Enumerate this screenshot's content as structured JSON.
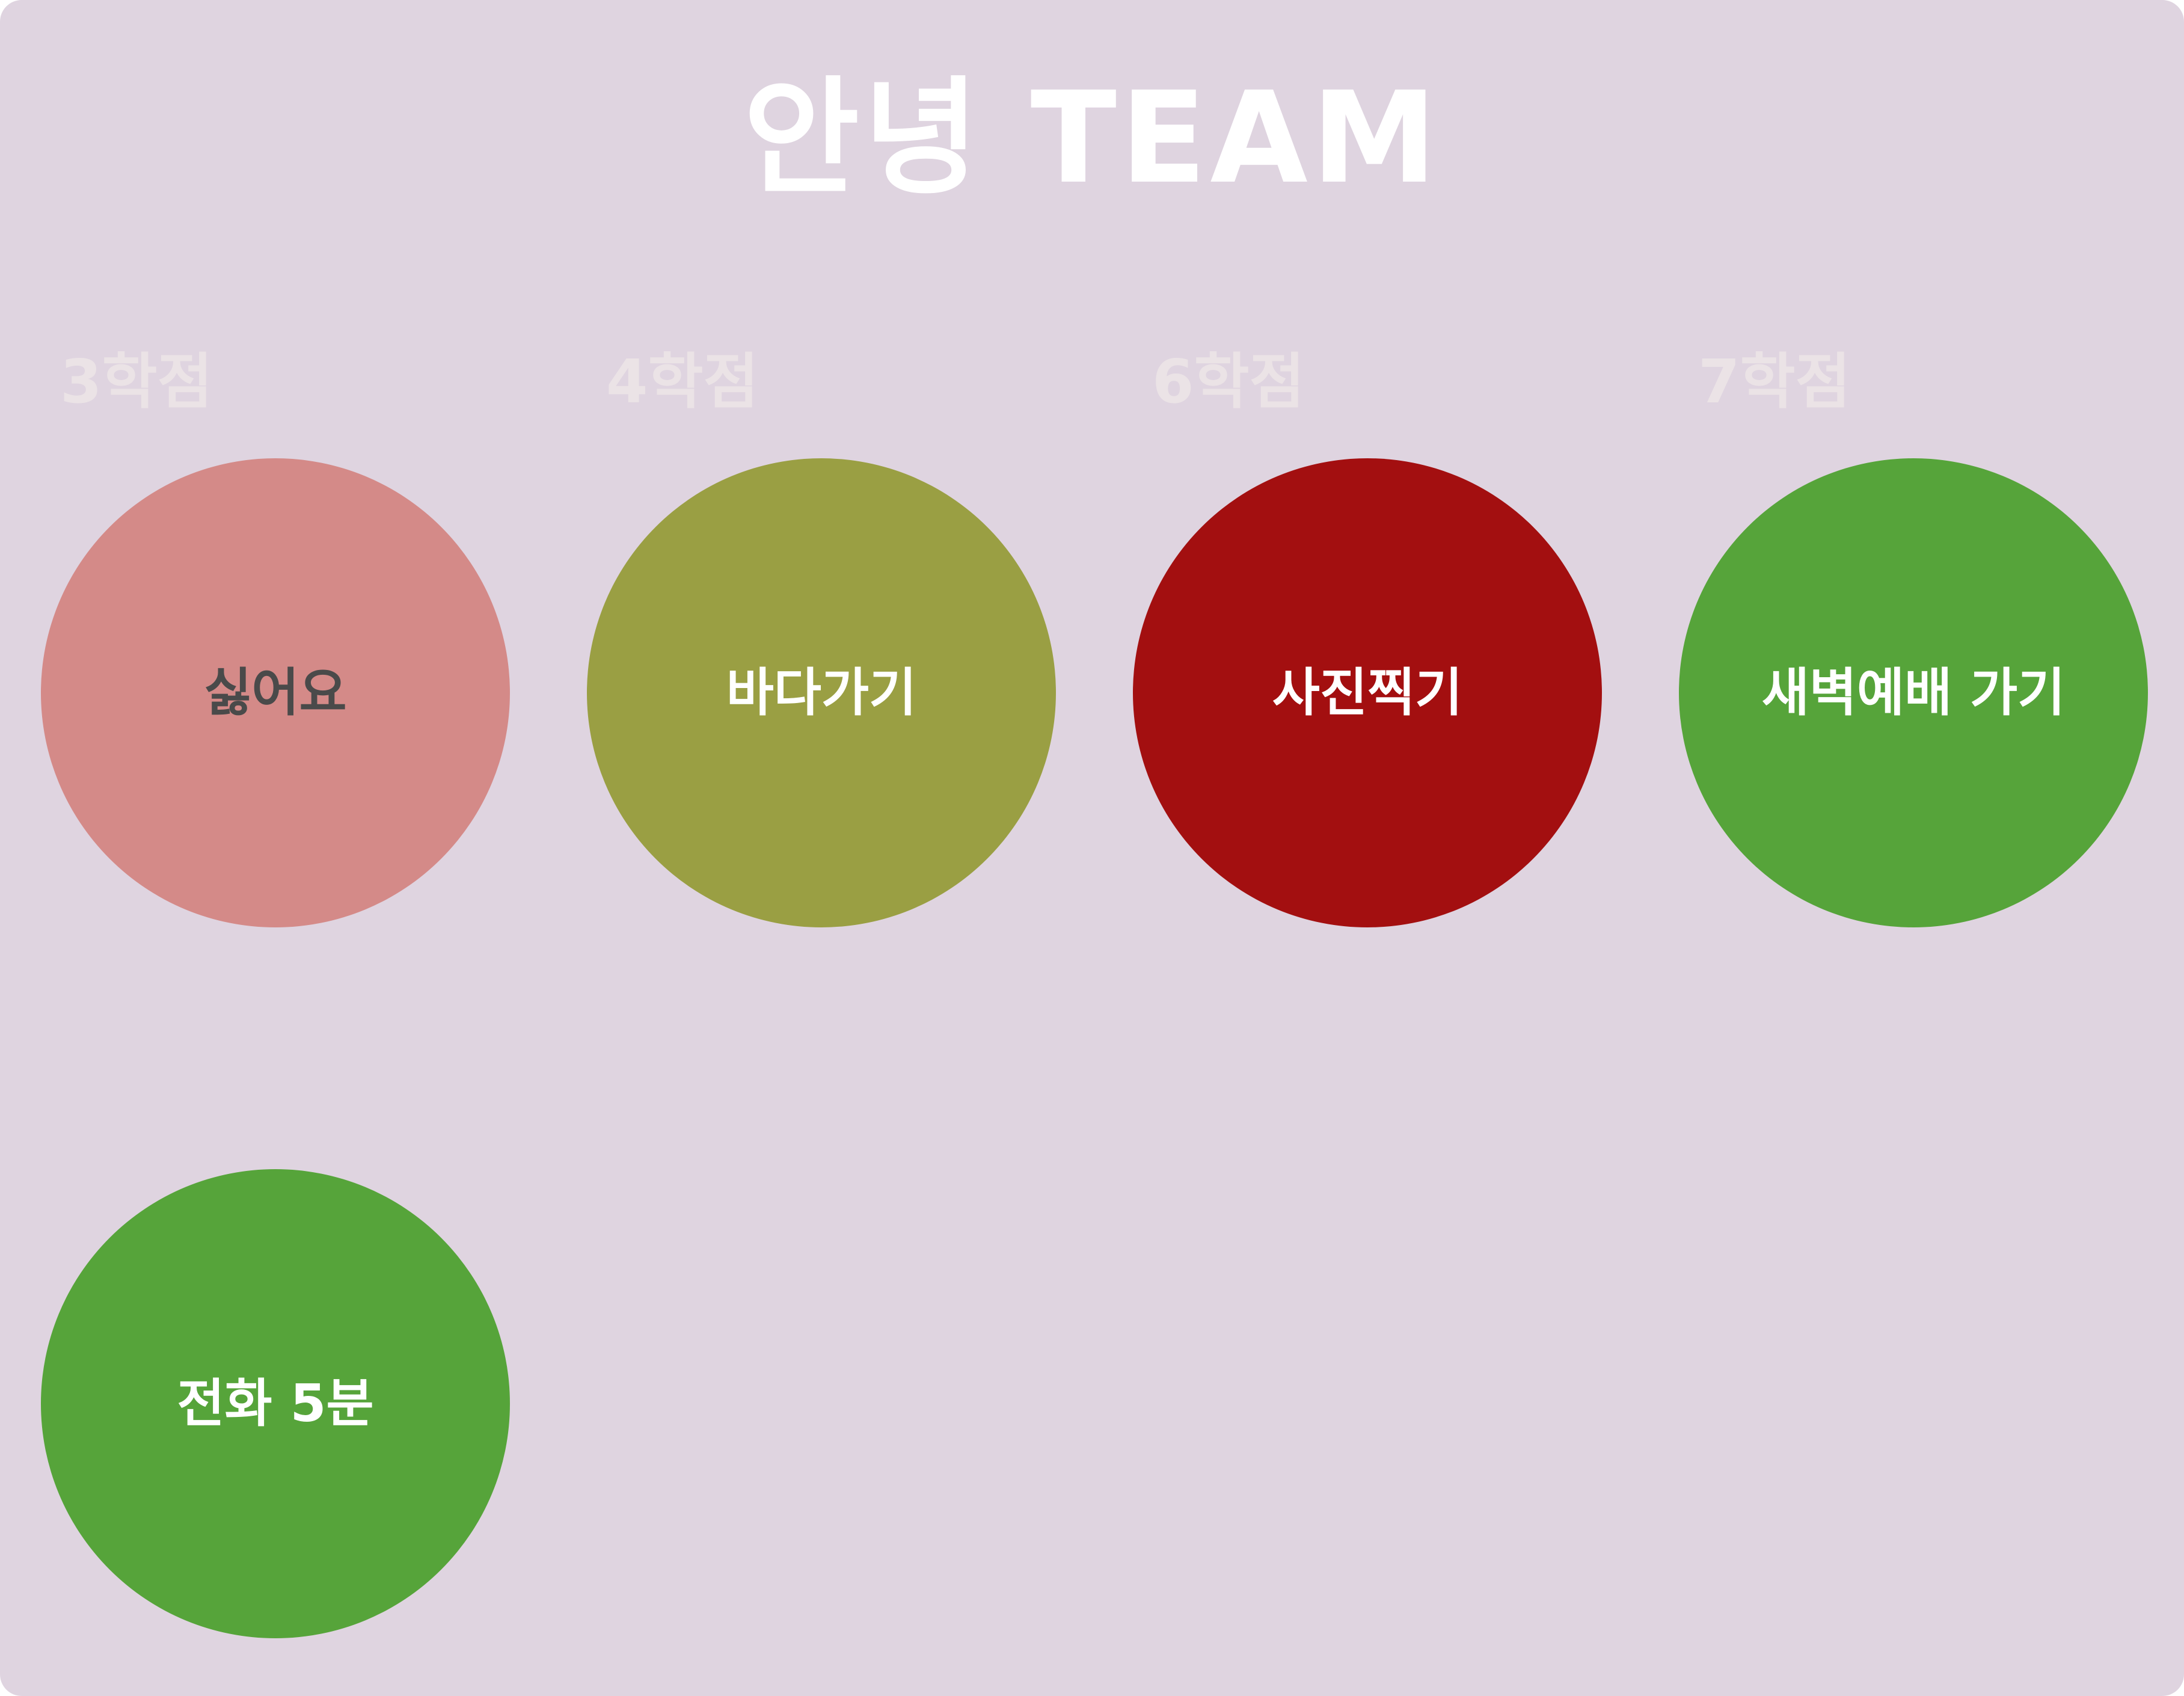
{
  "title": "안녕 TEAM",
  "columns": [
    {
      "label": "3학점"
    },
    {
      "label": "4학점"
    },
    {
      "label": "6학점"
    },
    {
      "label": "7학점"
    }
  ],
  "cards": [
    {
      "label": "싫어요",
      "color": "#d48a88",
      "text_color": "#4a4a4a"
    },
    {
      "label": "바다가기",
      "color": "#9a9f43",
      "text_color": "#ffffff"
    },
    {
      "label": "사진찍기",
      "color": "#a30f10",
      "text_color": "#ffffff"
    },
    {
      "label": "새벽예배 가기",
      "color": "#56a43a",
      "text_color": "#ffffff"
    },
    {
      "label": "전화 5분",
      "color": "#56a43a",
      "text_color": "#ffffff"
    }
  ],
  "colors": {
    "background": "#dfd4e0",
    "title": "#ffffff",
    "column_label": "#ebe3e6"
  }
}
